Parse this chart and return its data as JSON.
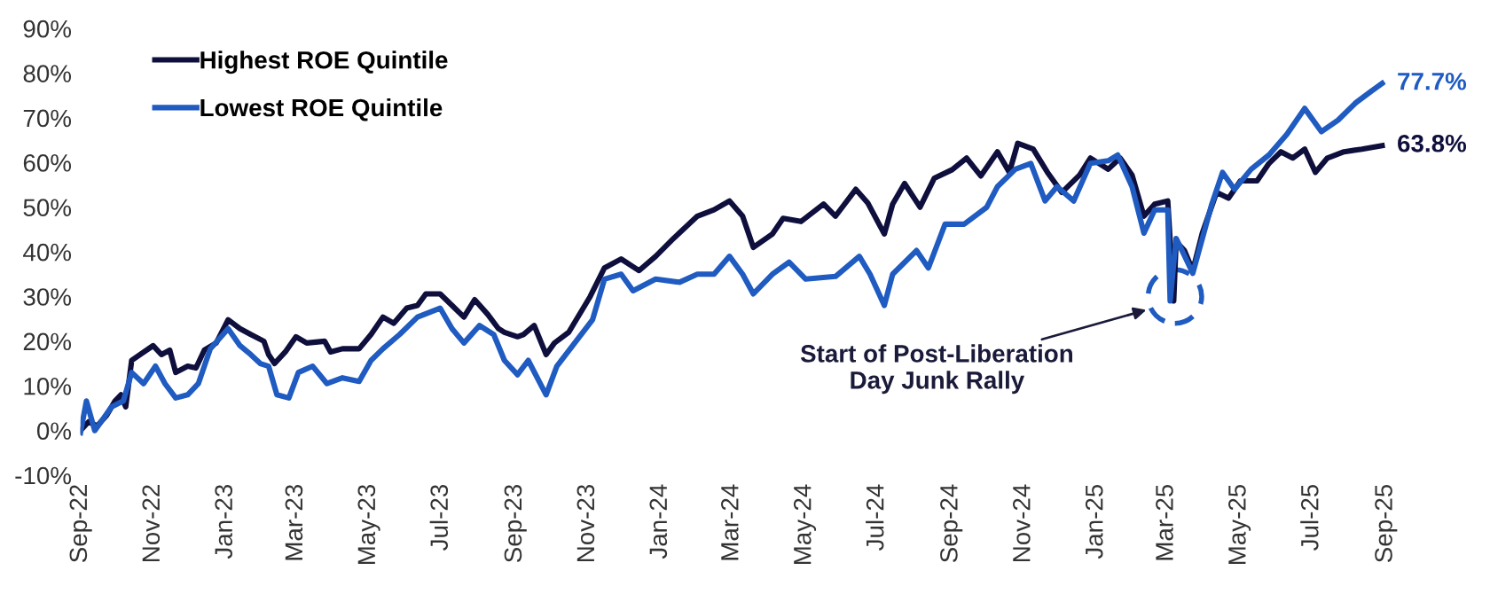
{
  "chart_data": {
    "type": "line",
    "xlim": [
      "2022-09-01",
      "2025-09-01"
    ],
    "xticks": [
      {
        "value": "2022-09-01",
        "label": "Sep-22"
      },
      {
        "value": "2022-11-01",
        "label": "Nov-22"
      },
      {
        "value": "2023-01-01",
        "label": "Jan-23"
      },
      {
        "value": "2023-03-01",
        "label": "Mar-23"
      },
      {
        "value": "2023-05-01",
        "label": "May-23"
      },
      {
        "value": "2023-07-01",
        "label": "Jul-23"
      },
      {
        "value": "2023-09-01",
        "label": "Sep-23"
      },
      {
        "value": "2023-11-01",
        "label": "Nov-23"
      },
      {
        "value": "2024-01-01",
        "label": "Jan-24"
      },
      {
        "value": "2024-03-01",
        "label": "Mar-24"
      },
      {
        "value": "2024-05-01",
        "label": "May-24"
      },
      {
        "value": "2024-07-01",
        "label": "Jul-24"
      },
      {
        "value": "2024-09-01",
        "label": "Sep-24"
      },
      {
        "value": "2024-11-01",
        "label": "Nov-24"
      },
      {
        "value": "2025-01-01",
        "label": "Jan-25"
      },
      {
        "value": "2025-03-01",
        "label": "Mar-25"
      },
      {
        "value": "2025-05-01",
        "label": "May-25"
      },
      {
        "value": "2025-07-01",
        "label": "Jul-25"
      },
      {
        "value": "2025-09-01",
        "label": "Sep-25"
      }
    ],
    "ylim": [
      -10,
      90
    ],
    "yticks": [
      {
        "value": -10,
        "label": "-10%"
      },
      {
        "value": 0,
        "label": "0%"
      },
      {
        "value": 10,
        "label": "10%"
      },
      {
        "value": 20,
        "label": "20%"
      },
      {
        "value": 30,
        "label": "30%"
      },
      {
        "value": 40,
        "label": "40%"
      },
      {
        "value": 50,
        "label": "50%"
      },
      {
        "value": 60,
        "label": "60%"
      },
      {
        "value": 70,
        "label": "70%"
      },
      {
        "value": 80,
        "label": "80%"
      },
      {
        "value": 90,
        "label": "90%"
      }
    ],
    "grid": false,
    "legend": "top left",
    "series": [
      {
        "name": "Highest ROE Quintile",
        "color": "#0f0f3d",
        "x": [
          "2022-09-01",
          "2022-09-08",
          "2022-09-15",
          "2022-09-23",
          "2022-09-30",
          "2022-10-05",
          "2022-10-09",
          "2022-10-14",
          "2022-10-21",
          "2022-11-01",
          "2022-11-08",
          "2022-11-15",
          "2022-11-20",
          "2022-11-30",
          "2022-12-07",
          "2022-12-14",
          "2022-12-24",
          "2023-01-03",
          "2023-01-13",
          "2023-01-22",
          "2023-02-02",
          "2023-02-06",
          "2023-02-11",
          "2023-02-20",
          "2023-03-01",
          "2023-03-10",
          "2023-03-25",
          "2023-03-30",
          "2023-04-09",
          "2023-04-23",
          "2023-05-03",
          "2023-05-13",
          "2023-05-22",
          "2023-06-02",
          "2023-06-11",
          "2023-06-18",
          "2023-06-30",
          "2023-07-10",
          "2023-07-20",
          "2023-07-29",
          "2023-08-09",
          "2023-08-18",
          "2023-08-23",
          "2023-09-03",
          "2023-09-08",
          "2023-09-17",
          "2023-09-27",
          "2023-10-04",
          "2023-10-16",
          "2023-11-03",
          "2023-11-15",
          "2023-11-29",
          "2023-12-14",
          "2023-12-28",
          "2024-01-12",
          "2024-02-01",
          "2024-02-15",
          "2024-02-28",
          "2024-03-10",
          "2024-03-19",
          "2024-04-04",
          "2024-04-13",
          "2024-04-28",
          "2024-05-17",
          "2024-05-27",
          "2024-06-13",
          "2024-06-23",
          "2024-07-07",
          "2024-07-14",
          "2024-07-24",
          "2024-08-06",
          "2024-08-18",
          "2024-09-02",
          "2024-09-14",
          "2024-09-26",
          "2024-10-10",
          "2024-10-20",
          "2024-10-27",
          "2024-11-09",
          "2024-11-21",
          "2024-12-03",
          "2024-12-18",
          "2024-12-27",
          "2025-01-11",
          "2025-01-21",
          "2025-01-31",
          "2025-02-10",
          "2025-02-19",
          "2025-03-02",
          "2025-03-07",
          "2025-03-09",
          "2025-03-16",
          "2025-03-23",
          "2025-03-31",
          "2025-04-12",
          "2025-04-22",
          "2025-05-02",
          "2025-05-16",
          "2025-05-26",
          "2025-06-05",
          "2025-06-15",
          "2025-06-25",
          "2025-07-04",
          "2025-07-14",
          "2025-07-28",
          "2025-08-12",
          "2025-08-29"
        ],
        "values": [
          0,
          2,
          1,
          3.4,
          6.6,
          8,
          5.3,
          15.7,
          17,
          19,
          17,
          18,
          13,
          14.4,
          14,
          18,
          19.6,
          24.8,
          22.8,
          21.5,
          20,
          17,
          15,
          17.6,
          21,
          19.6,
          20,
          17.6,
          18.3,
          18.3,
          21.5,
          25.4,
          24,
          27.4,
          28,
          30.6,
          30.6,
          28,
          25.4,
          29.3,
          26,
          22.8,
          22,
          21,
          21.5,
          23.5,
          17,
          19.6,
          22,
          30,
          36.4,
          38.4,
          35.8,
          39,
          43,
          48,
          49.4,
          51.4,
          48,
          41,
          44,
          47.5,
          46.8,
          50.7,
          48,
          54,
          51,
          44,
          50.7,
          55.3,
          50,
          56.5,
          58.4,
          61,
          57,
          62.4,
          57.8,
          64.3,
          63,
          57.8,
          53.3,
          57.2,
          61,
          58.5,
          61,
          57.2,
          48,
          50.7,
          51.4,
          29,
          42.3,
          40.3,
          35.8,
          44.2,
          53.3,
          52,
          55.9,
          55.9,
          59.8,
          62.4,
          61,
          63,
          57.8,
          61,
          62.4,
          63,
          63.8
        ]
      },
      {
        "name": "Lowest ROE Quintile",
        "color": "#1f5bc0",
        "x": [
          "2022-09-01",
          "2022-09-06",
          "2022-09-13",
          "2022-09-20",
          "2022-09-27",
          "2022-10-07",
          "2022-10-14",
          "2022-10-24",
          "2022-11-03",
          "2022-11-11",
          "2022-11-20",
          "2022-11-30",
          "2022-12-09",
          "2022-12-19",
          "2023-01-03",
          "2023-01-13",
          "2023-01-22",
          "2023-01-30",
          "2023-02-06",
          "2023-02-13",
          "2023-02-23",
          "2023-03-03",
          "2023-03-15",
          "2023-03-27",
          "2023-04-09",
          "2023-04-23",
          "2023-05-03",
          "2023-05-13",
          "2023-05-27",
          "2023-06-11",
          "2023-06-30",
          "2023-07-10",
          "2023-07-20",
          "2023-08-02",
          "2023-08-14",
          "2023-08-23",
          "2023-09-03",
          "2023-09-12",
          "2023-09-27",
          "2023-10-06",
          "2023-10-21",
          "2023-11-05",
          "2023-11-15",
          "2023-11-29",
          "2023-12-09",
          "2023-12-28",
          "2024-01-17",
          "2024-02-01",
          "2024-02-15",
          "2024-02-28",
          "2024-03-10",
          "2024-03-19",
          "2024-04-04",
          "2024-04-18",
          "2024-05-02",
          "2024-05-27",
          "2024-06-16",
          "2024-06-25",
          "2024-07-07",
          "2024-07-14",
          "2024-08-03",
          "2024-08-13",
          "2024-08-27",
          "2024-09-12",
          "2024-10-01",
          "2024-10-10",
          "2024-10-25",
          "2024-11-07",
          "2024-11-19",
          "2024-11-29",
          "2024-12-13",
          "2024-12-27",
          "2025-01-11",
          "2025-01-19",
          "2025-01-31",
          "2025-02-10",
          "2025-02-19",
          "2025-03-02",
          "2025-03-04",
          "2025-03-09",
          "2025-03-14",
          "2025-03-23",
          "2025-04-08",
          "2025-04-17",
          "2025-04-27",
          "2025-05-11",
          "2025-05-26",
          "2025-06-10",
          "2025-06-25",
          "2025-07-09",
          "2025-07-23",
          "2025-08-07",
          "2025-08-20",
          "2025-08-29"
        ],
        "values": [
          -0.5,
          6.6,
          0,
          2.6,
          5.3,
          6.6,
          13,
          10.5,
          14.4,
          10.5,
          7.3,
          8,
          10.5,
          18.3,
          22.8,
          19,
          17,
          15,
          14.4,
          8,
          7.3,
          13,
          14.4,
          10.5,
          11.8,
          11,
          15.7,
          18.3,
          21.5,
          25.4,
          27.4,
          22.8,
          19.6,
          23.5,
          21.5,
          15.7,
          12.5,
          15.7,
          8,
          14.4,
          19.6,
          24.8,
          33.9,
          35,
          31.3,
          33.9,
          33.2,
          35,
          35,
          39,
          35,
          30.6,
          35,
          37.7,
          33.9,
          34.5,
          39,
          35,
          28,
          35,
          40.3,
          36.4,
          46.2,
          46.2,
          50,
          54.6,
          58.5,
          59.8,
          51.4,
          54.6,
          51.4,
          59.8,
          60.4,
          61.7,
          54.6,
          44.2,
          49.4,
          49.4,
          29,
          43,
          40.3,
          35.2,
          50.7,
          57.8,
          54,
          58.5,
          61.7,
          66.3,
          72.1,
          66.9,
          69.5,
          73.4,
          76,
          77.7
        ]
      }
    ],
    "annotations": [
      {
        "text": "77.7%",
        "x": "2025-08-29",
        "y": 77.7
      },
      {
        "text": "63.8%",
        "x": "2025-08-29",
        "y": 63.8
      },
      {
        "text": "Start of Post-Liberation\nDay Junk Rally",
        "x": "2025-02-12",
        "y": 27
      }
    ]
  }
}
